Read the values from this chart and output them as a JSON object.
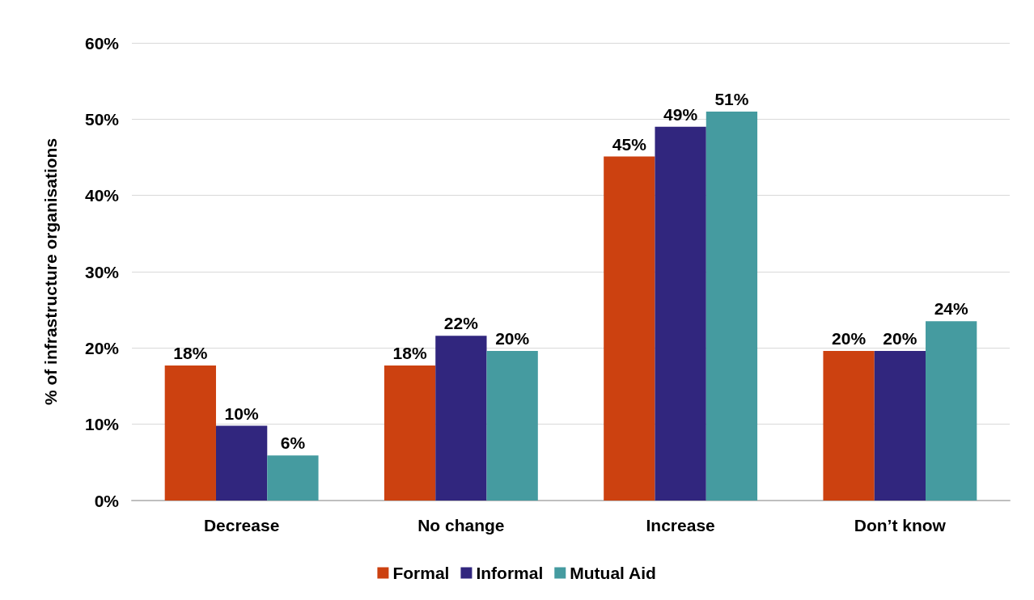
{
  "chart_data": {
    "type": "bar",
    "ylabel": "% of infrastructure organisations",
    "categories": [
      "Decrease",
      "No change",
      "Increase",
      "Don’t know"
    ],
    "series": [
      {
        "name": "Formal",
        "color": "#cc4110",
        "values": [
          17.7,
          17.7,
          45.1,
          19.6
        ],
        "value_labels": [
          "18%",
          "18%",
          "45%",
          "20%"
        ]
      },
      {
        "name": "Informal",
        "color": "#31267e",
        "values": [
          9.8,
          21.6,
          49,
          19.6
        ],
        "value_labels": [
          "10%",
          "22%",
          "49%",
          "20%"
        ]
      },
      {
        "name": "Mutual Aid",
        "color": "#459ba0",
        "values": [
          5.9,
          19.6,
          51,
          23.5
        ],
        "value_labels": [
          "6%",
          "20%",
          "51%",
          "24%"
        ]
      }
    ],
    "ylim": [
      0,
      60
    ],
    "yticks": [
      {
        "value": 0,
        "label": "0%"
      },
      {
        "value": 10,
        "label": "10%"
      },
      {
        "value": 20,
        "label": "20%"
      },
      {
        "value": 30,
        "label": "30%"
      },
      {
        "value": 40,
        "label": "40%"
      },
      {
        "value": 50,
        "label": "50%"
      },
      {
        "value": 60,
        "label": "60%"
      }
    ],
    "grid": "y",
    "legend": "bottom"
  }
}
